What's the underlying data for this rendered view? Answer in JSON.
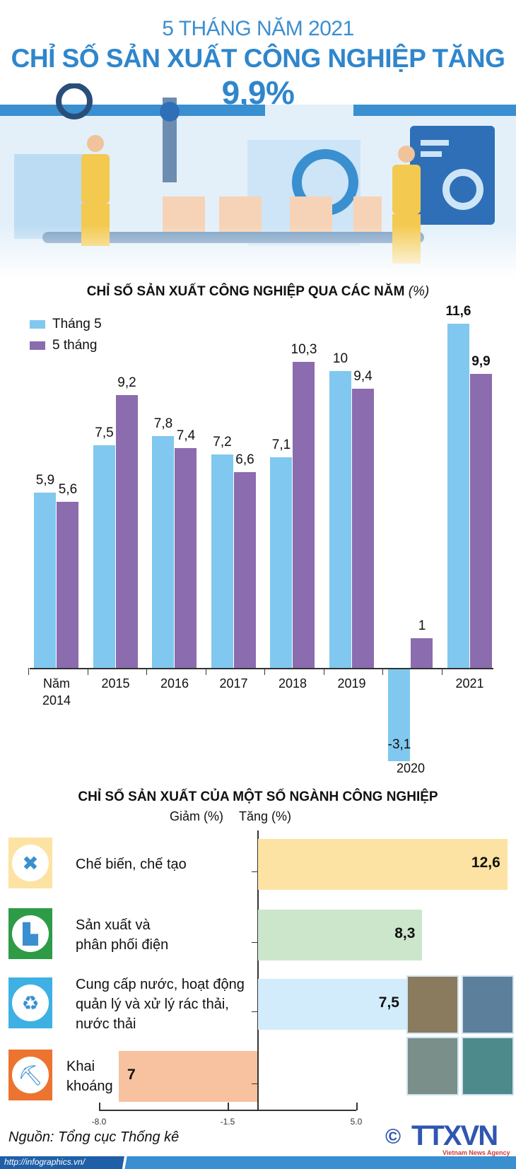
{
  "header": {
    "subtitle": "5 THÁNG NĂM 2021",
    "title": "CHỈ SỐ SẢN XUẤT CÔNG NGHIỆP TĂNG",
    "title_value": "9,9%"
  },
  "colors": {
    "thang5": "#80c8ef",
    "nam5thang": "#8b6cae",
    "title": "#2f86cc",
    "footer": "#2f6fb8"
  },
  "chart_data": [
    {
      "type": "bar",
      "title": "CHỈ SỐ SẢN XUẤT CÔNG NGHIỆP QUA CÁC NĂM",
      "title_unit": "(%)",
      "categories": [
        "Năm 2014",
        "2015",
        "2016",
        "2017",
        "2018",
        "2019",
        "2020",
        "2021"
      ],
      "series": [
        {
          "name": "Tháng 5",
          "values": [
            5.9,
            7.5,
            7.8,
            7.2,
            7.1,
            10,
            -3.1,
            11.6
          ],
          "labels": [
            "5,9",
            "7,5",
            "7,8",
            "7,2",
            "7,1",
            "10",
            "-3,1",
            "11,6"
          ]
        },
        {
          "name": "5 tháng",
          "values": [
            5.6,
            9.2,
            7.4,
            6.6,
            10.3,
            9.4,
            1,
            9.9
          ],
          "labels": [
            "5,6",
            "9,2",
            "7,4",
            "6,6",
            "10,3",
            "9,4",
            "1",
            "9,9"
          ]
        }
      ],
      "legend": "top-left",
      "grid": false
    },
    {
      "type": "bar",
      "orientation": "horizontal",
      "title": "CHỈ SỐ SẢN XUẤT CỦA MỘT SỐ NGÀNH CÔNG NGHIỆP",
      "axis_left_label": "Giảm (%)",
      "axis_right_label": "Tăng (%)",
      "categories": [
        "Chế biến, chế tạo",
        "Sản xuất và phân phối điện",
        "Cung cấp nước, hoạt động quản lý và xử lý rác thải, nước thải",
        "Khai khoáng"
      ],
      "category_lines": [
        [
          "Chế biến, chế tạo"
        ],
        [
          "Sản xuất và",
          "phân phối điện"
        ],
        [
          "Cung cấp nước, hoạt động",
          "quản lý và xử lý rác thải,",
          "nước thải"
        ],
        [
          "Khai",
          "khoáng"
        ]
      ],
      "values": [
        12.6,
        8.3,
        7.5,
        -7
      ],
      "labels": [
        "12,6",
        "8,3",
        "7,5",
        "7"
      ],
      "bar_colors": [
        "#fde3a3",
        "#cbe6cb",
        "#d3ecfb",
        "#f8c19f"
      ],
      "icons": [
        "tools-icon",
        "power-plant-icon",
        "recycle-icon",
        "mine-cart-icon"
      ],
      "icon_bg": [
        "#fde3a3",
        "#2e9b47",
        "#3fb0e3",
        "#ec7430"
      ],
      "xticks": [
        -8.0,
        -1.5,
        5.0
      ],
      "xtick_labels": [
        "-8.0",
        "-1.5",
        "5.0"
      ]
    }
  ],
  "footer": {
    "source": "Nguồn: Tổng cục Thống kê",
    "url": "http://infographics.vn/",
    "logo": "TTXVN",
    "logo_sub": "Vietnam News Agency",
    "copyright": "©"
  }
}
